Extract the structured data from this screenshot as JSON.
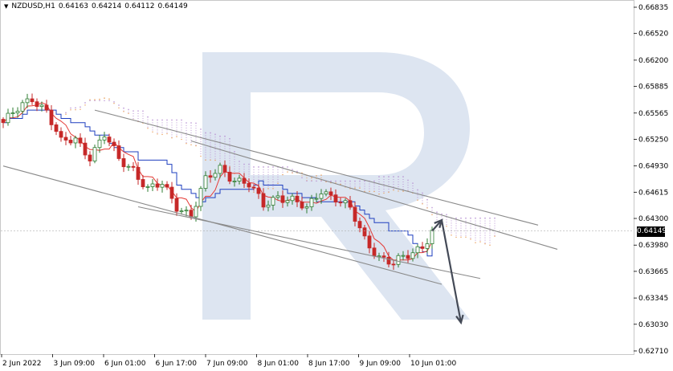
{
  "header": {
    "symbol": "NZDUSD,H1",
    "open": "0.64163",
    "high": "0.64214",
    "low": "0.64112",
    "close": "0.64149"
  },
  "current_price_label": "0.64149",
  "colors": {
    "up_candle": "#2e7d32",
    "down_candle": "#c62828",
    "tenkan": "#e53935",
    "kijun": "#1e3fbf",
    "cloud_a": "#e89a52",
    "cloud_b": "#b48ad0",
    "trend": "#8a8a8a",
    "arrow": "#444a57",
    "watermark": "#dde5f1"
  },
  "chart_data": {
    "type": "candlestick",
    "instrument": "NZDUSD",
    "timeframe": "H1",
    "ylim": [
      0.6271,
      0.66835
    ],
    "y_ticks": [
      "0.66835",
      "0.66520",
      "0.66200",
      "0.65885",
      "0.65565",
      "0.65250",
      "0.64930",
      "0.64615",
      "0.64300",
      "0.63980",
      "0.63665",
      "0.63345",
      "0.63030",
      "0.62710"
    ],
    "x_ticks": [
      "2 Jun 2022",
      "3 Jun 09:00",
      "6 Jun 01:00",
      "6 Jun 17:00",
      "7 Jun 09:00",
      "8 Jun 01:00",
      "8 Jun 17:00",
      "9 Jun 09:00",
      "10 Jun 01:00"
    ],
    "close_path": [
      [
        0,
        0.6545
      ],
      [
        3,
        0.656
      ],
      [
        6,
        0.6575
      ],
      [
        9,
        0.656
      ],
      [
        12,
        0.652
      ],
      [
        15,
        0.6525
      ],
      [
        18,
        0.6505
      ],
      [
        21,
        0.653
      ],
      [
        24,
        0.65
      ],
      [
        27,
        0.649
      ],
      [
        30,
        0.6465
      ],
      [
        33,
        0.647
      ],
      [
        36,
        0.6445
      ],
      [
        39,
        0.6435
      ],
      [
        42,
        0.6475
      ],
      [
        45,
        0.649
      ],
      [
        48,
        0.6478
      ],
      [
        51,
        0.647
      ],
      [
        54,
        0.6445
      ],
      [
        57,
        0.6458
      ],
      [
        60,
        0.6452
      ],
      [
        63,
        0.644
      ],
      [
        66,
        0.6465
      ],
      [
        69,
        0.6455
      ],
      [
        72,
        0.644
      ],
      [
        75,
        0.6405
      ],
      [
        78,
        0.6385
      ],
      [
        81,
        0.6375
      ],
      [
        84,
        0.6385
      ],
      [
        87,
        0.6398
      ],
      [
        89,
        0.6415
      ]
    ],
    "forecast_arrow": [
      [
        89,
        0.6415
      ],
      [
        91,
        0.6428
      ],
      [
        95,
        0.6305
      ]
    ],
    "trend_lines": [
      [
        [
          19,
          0.656
        ],
        [
          111,
          0.6422
        ]
      ],
      [
        [
          39,
          0.6523
        ],
        [
          115,
          0.6393
        ]
      ],
      [
        [
          0,
          0.6493
        ],
        [
          91,
          0.6351
        ]
      ],
      [
        [
          28,
          0.6444
        ],
        [
          99,
          0.6358
        ]
      ]
    ]
  }
}
